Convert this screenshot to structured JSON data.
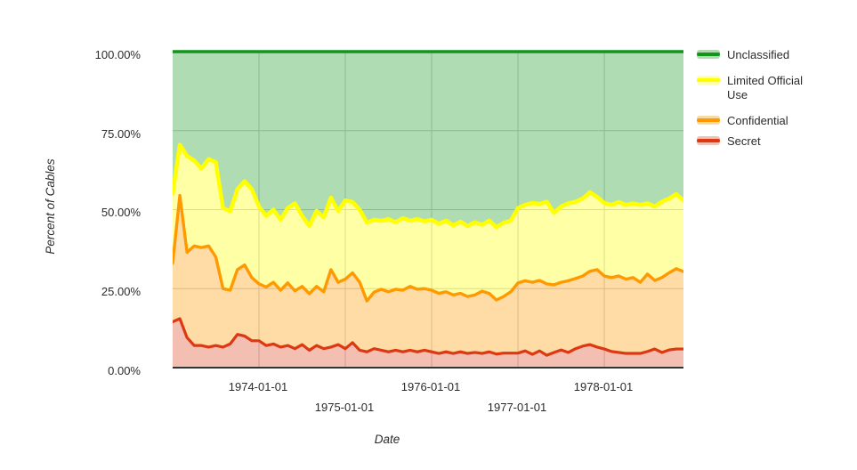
{
  "figure": {
    "background": "#ffffff",
    "grid_color": "#cccccc",
    "axis_line_color": "#333333",
    "y_axis": {
      "title": "Percent of Cables",
      "tick_labels": [
        "100.00%",
        "75.00%",
        "50.00%",
        "25.00%",
        "0.00%"
      ]
    },
    "x_axis": {
      "title": "Date",
      "tick_labels": [
        "1974-01-01",
        "1975-01-01",
        "1976-01-01",
        "1977-01-01",
        "1978-01-01"
      ]
    },
    "legend": {
      "position": "right",
      "items": [
        {
          "label": "Unclassified",
          "line_color": "#109618",
          "fill_color": "#b2d8b2"
        },
        {
          "label": "Limited Official Use",
          "line_color": "#ffff00",
          "fill_color": "#ffffa8"
        },
        {
          "label": "Confidential",
          "line_color": "#ff9900",
          "fill_color": "#fad9a5"
        },
        {
          "label": "Secret",
          "line_color": "#dc3912",
          "fill_color": "#f4c0b3"
        }
      ]
    }
  },
  "chart_data": {
    "type": "area",
    "stacked": true,
    "title": "",
    "xlabel": "Date",
    "ylabel": "Percent of Cables",
    "ylim": [
      0,
      100
    ],
    "grid": true,
    "legend_position": "right",
    "x_tick_labels": [
      "1974-01-01",
      "1975-01-01",
      "1976-01-01",
      "1977-01-01",
      "1978-01-01"
    ],
    "x": [
      "1973-01",
      "1973-02",
      "1973-03",
      "1973-04",
      "1973-05",
      "1973-06",
      "1973-07",
      "1973-08",
      "1973-09",
      "1973-10",
      "1973-11",
      "1973-12",
      "1974-01",
      "1974-02",
      "1974-03",
      "1974-04",
      "1974-05",
      "1974-06",
      "1974-07",
      "1974-08",
      "1974-09",
      "1974-10",
      "1974-11",
      "1974-12",
      "1975-01",
      "1975-02",
      "1975-03",
      "1975-04",
      "1975-05",
      "1975-06",
      "1975-07",
      "1975-08",
      "1975-09",
      "1975-10",
      "1975-11",
      "1975-12",
      "1976-01",
      "1976-02",
      "1976-03",
      "1976-04",
      "1976-05",
      "1976-06",
      "1976-07",
      "1976-08",
      "1976-09",
      "1976-10",
      "1976-11",
      "1976-12",
      "1977-01",
      "1977-02",
      "1977-03",
      "1977-04",
      "1977-05",
      "1977-06",
      "1977-07",
      "1977-08",
      "1977-09",
      "1977-10",
      "1977-11",
      "1977-12",
      "1978-01",
      "1978-02",
      "1978-03",
      "1978-04",
      "1978-05",
      "1978-06",
      "1978-07",
      "1978-08",
      "1978-09",
      "1978-10",
      "1978-11",
      "1978-12"
    ],
    "series": [
      {
        "name": "Secret",
        "line_color": "#dc3912",
        "fill_color": "rgba(220,57,18,0.32)",
        "line_width": 3.2,
        "values": [
          14.5,
          15.5,
          9.5,
          7,
          7,
          6.5,
          7,
          6.5,
          7.5,
          10.5,
          10,
          8.5,
          8.5,
          7,
          7.5,
          6.5,
          7,
          6,
          7.3,
          5.5,
          7,
          6,
          6.5,
          7.3,
          6,
          7.9,
          5.5,
          5,
          6,
          5.5,
          5,
          5.5,
          5,
          5.5,
          5,
          5.5,
          5,
          4.5,
          5,
          4.5,
          5,
          4.5,
          4.8,
          4.5,
          5,
          4.3,
          4.6,
          4.6,
          4.6,
          5.3,
          4.2,
          5.3,
          3.9,
          4.8,
          5.6,
          4.8,
          6,
          6.8,
          7.3,
          6.5,
          5.9,
          5.1,
          4.8,
          4.5,
          4.5,
          4.5,
          5.1,
          5.9,
          4.8,
          5.6,
          5.9,
          5.9
        ]
      },
      {
        "name": "Confidential",
        "line_color": "#ff9900",
        "fill_color": "rgba(255,153,0,0.35)",
        "line_width": 3.4,
        "values": [
          18.5,
          39,
          27,
          31.5,
          31,
          32,
          28,
          18.5,
          17,
          20.5,
          22.5,
          20,
          18,
          18.5,
          19.5,
          18,
          19.8,
          18.3,
          18.4,
          17.9,
          18.7,
          18,
          24.5,
          19.7,
          22,
          22.1,
          21.5,
          16.1,
          17.9,
          19.3,
          19,
          19.3,
          19.5,
          20.2,
          19.8,
          19.5,
          19.5,
          19,
          19,
          18.5,
          18.5,
          18,
          18.2,
          19.7,
          18.5,
          17.1,
          17.9,
          19.4,
          22.2,
          22.2,
          22.8,
          22.3,
          22.6,
          21.4,
          21.4,
          22.7,
          22.2,
          22.2,
          23.2,
          24.5,
          23.1,
          23.4,
          24.2,
          23.5,
          24,
          22.5,
          24.5,
          21.7,
          23.7,
          24.4,
          25.4,
          24.5
        ]
      },
      {
        "name": "Limited Official Use",
        "line_color": "#ffff00",
        "fill_color": "rgba(255,255,0,0.35)",
        "line_width": 4.5,
        "values": [
          22,
          16,
          30.5,
          27,
          25,
          27.5,
          30,
          25.5,
          25,
          25.5,
          26.5,
          28,
          24.5,
          22.5,
          23,
          22.3,
          23.7,
          27.7,
          22.3,
          21.4,
          23.9,
          23.5,
          22.8,
          22.6,
          24.9,
          22.4,
          23,
          24.8,
          22.9,
          21.7,
          23,
          21.2,
          22.8,
          20.8,
          22.2,
          21.3,
          22.3,
          22,
          22.5,
          22,
          22.7,
          22.3,
          23,
          21,
          23,
          23.1,
          23.3,
          22.5,
          23.7,
          24,
          25.1,
          24.2,
          26,
          22.8,
          24,
          24.5,
          24.3,
          24.5,
          25,
          23,
          23.1,
          23,
          23.4,
          23.5,
          23.5,
          24.5,
          22.4,
          23.4,
          24,
          23.5,
          23.6,
          22.5
        ]
      },
      {
        "name": "Unclassified",
        "line_color": "#109618",
        "fill_color": "rgba(16,150,24,0.33)",
        "line_width": 3.4,
        "values": [
          45,
          29.5,
          33,
          34.5,
          37,
          34,
          35,
          49.5,
          50.5,
          43.5,
          41,
          43.5,
          49,
          52,
          50,
          53.2,
          49.5,
          48,
          52,
          55.2,
          50.4,
          52.5,
          46.2,
          50.4,
          47.1,
          47.6,
          50,
          54.1,
          53.2,
          53.5,
          53,
          54,
          52.7,
          53.5,
          53,
          53.7,
          53.2,
          54.5,
          53.5,
          55,
          53.8,
          55.2,
          54,
          54.8,
          53.5,
          55.5,
          54.2,
          53.5,
          49.5,
          48.5,
          47.9,
          48.2,
          47.5,
          51,
          49,
          48,
          47.5,
          46.5,
          44.5,
          46,
          47.9,
          48.5,
          47.6,
          48.5,
          48,
          48.5,
          48,
          49,
          47.5,
          46.5,
          45.1,
          47.1
        ]
      }
    ]
  }
}
